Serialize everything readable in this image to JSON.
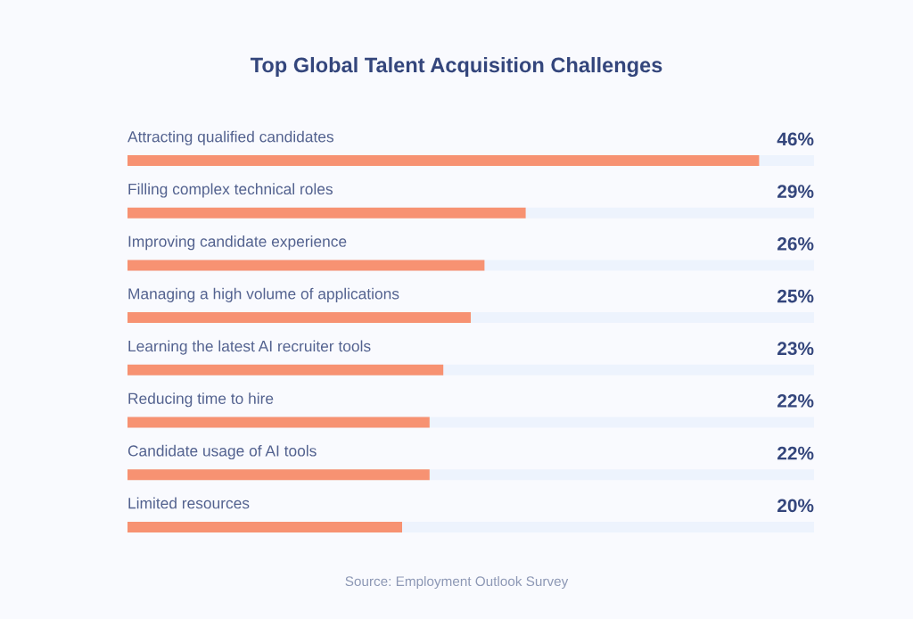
{
  "chart_data": {
    "type": "bar",
    "orientation": "horizontal",
    "title": "Top Global Talent Acquisition Challenges",
    "categories": [
      "Attracting qualified candidates",
      "Filling complex technical roles",
      "Improving candidate experience",
      "Managing a high volume of applications",
      "Learning the latest AI recruiter tools",
      "Reducing time to hire",
      "Candidate usage of AI tools",
      "Limited resources"
    ],
    "values": [
      46,
      29,
      26,
      25,
      23,
      22,
      22,
      20
    ],
    "value_labels": [
      "46%",
      "29%",
      "26%",
      "25%",
      "23%",
      "22%",
      "22%",
      "20%"
    ],
    "color": "#f79272",
    "xlim": [
      0,
      50
    ],
    "tick_labels": "y",
    "annotations": [
      "Source: Employment Outlook Survey"
    ]
  }
}
